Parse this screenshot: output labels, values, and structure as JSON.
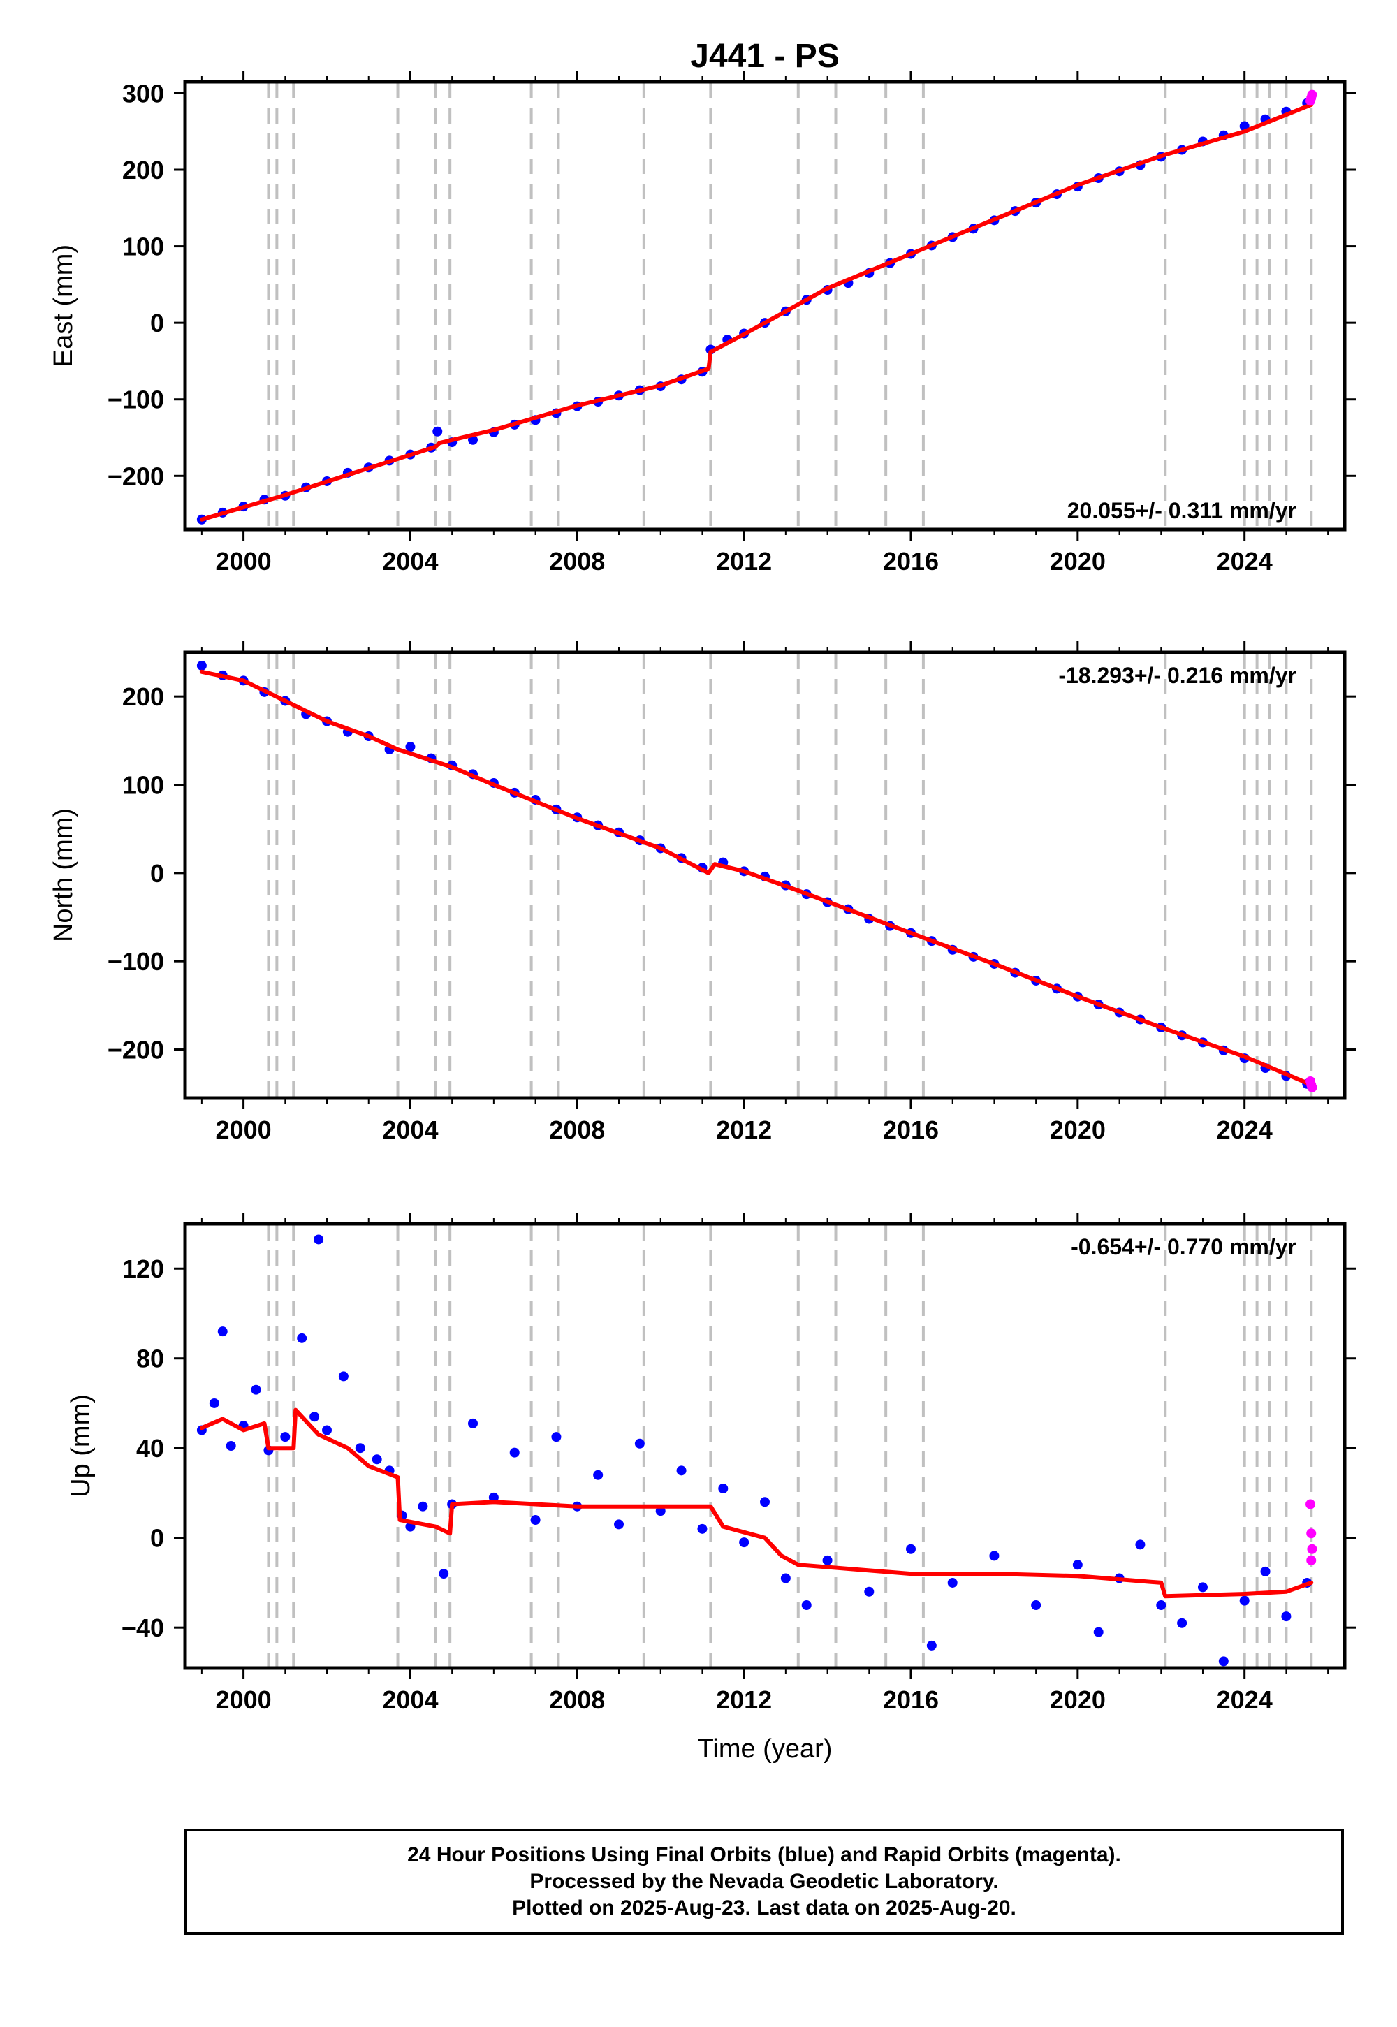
{
  "title": "J441 - PS",
  "xlabel": "Time (year)",
  "colors": {
    "final_orbits": "#0000ff",
    "rapid_orbits": "#ff00ff",
    "model": "#ff0000",
    "event_lines": "#c0c0c0"
  },
  "footer": {
    "line1": "24 Hour Positions Using Final Orbits (blue) and Rapid Orbits (magenta).",
    "line2": "Processed by the Nevada Geodetic Laboratory.",
    "line3": "Plotted on 2025-Aug-23. Last data on 2025-Aug-20."
  },
  "chart_data": [
    {
      "type": "scatter",
      "component": "east",
      "ylabel": "East (mm)",
      "rate_text": "20.055+/- 0.311 mm/yr",
      "rate_placement": "bottom-right",
      "xlim": [
        1998.6,
        2026.4
      ],
      "ylim": [
        -270,
        315
      ],
      "xticks": [
        2000,
        2004,
        2008,
        2012,
        2016,
        2020,
        2024
      ],
      "yticks": [
        -200,
        -100,
        0,
        100,
        200,
        300
      ],
      "event_lines": [
        2000.6,
        2000.8,
        2001.2,
        2003.7,
        2004.6,
        2004.95,
        2006.9,
        2007.55,
        2009.6,
        2011.2,
        2013.3,
        2014.2,
        2015.4,
        2016.3,
        2022.1,
        2024.0,
        2024.3,
        2024.6,
        2025.0,
        2025.6
      ],
      "model_line": [
        [
          1999.0,
          -257
        ],
        [
          2001.0,
          -225
        ],
        [
          2003.0,
          -190
        ],
        [
          2004.6,
          -162
        ],
        [
          2004.7,
          -157
        ],
        [
          2006.0,
          -140
        ],
        [
          2008.0,
          -108
        ],
        [
          2010.0,
          -82
        ],
        [
          2011.15,
          -60
        ],
        [
          2011.2,
          -38
        ],
        [
          2012.0,
          -15
        ],
        [
          2014.0,
          45
        ],
        [
          2016.0,
          90
        ],
        [
          2018.0,
          135
        ],
        [
          2020.0,
          180
        ],
        [
          2022.0,
          218
        ],
        [
          2024.0,
          250
        ],
        [
          2025.6,
          285
        ]
      ],
      "final_points": [
        [
          1999.0,
          -257
        ],
        [
          1999.5,
          -248
        ],
        [
          2000.0,
          -240
        ],
        [
          2000.5,
          -231
        ],
        [
          2001.0,
          -226
        ],
        [
          2001.5,
          -215
        ],
        [
          2002.0,
          -207
        ],
        [
          2002.5,
          -196
        ],
        [
          2003.0,
          -189
        ],
        [
          2003.5,
          -180
        ],
        [
          2004.0,
          -172
        ],
        [
          2004.5,
          -163
        ],
        [
          2004.65,
          -142
        ],
        [
          2005.0,
          -156
        ],
        [
          2005.5,
          -153
        ],
        [
          2006.0,
          -143
        ],
        [
          2006.5,
          -133
        ],
        [
          2007.0,
          -127
        ],
        [
          2007.5,
          -118
        ],
        [
          2008.0,
          -109
        ],
        [
          2008.5,
          -103
        ],
        [
          2009.0,
          -95
        ],
        [
          2009.5,
          -88
        ],
        [
          2010.0,
          -83
        ],
        [
          2010.5,
          -74
        ],
        [
          2011.0,
          -64
        ],
        [
          2011.2,
          -35
        ],
        [
          2011.6,
          -22
        ],
        [
          2012.0,
          -14
        ],
        [
          2012.5,
          0
        ],
        [
          2013.0,
          15
        ],
        [
          2013.5,
          30
        ],
        [
          2014.0,
          43
        ],
        [
          2014.5,
          52
        ],
        [
          2015.0,
          65
        ],
        [
          2015.5,
          78
        ],
        [
          2016.0,
          90
        ],
        [
          2016.5,
          101
        ],
        [
          2017.0,
          112
        ],
        [
          2017.5,
          123
        ],
        [
          2018.0,
          134
        ],
        [
          2018.5,
          146
        ],
        [
          2019.0,
          157
        ],
        [
          2019.5,
          168
        ],
        [
          2020.0,
          178
        ],
        [
          2020.5,
          189
        ],
        [
          2021.0,
          198
        ],
        [
          2021.5,
          206
        ],
        [
          2022.0,
          217
        ],
        [
          2022.5,
          226
        ],
        [
          2023.0,
          237
        ],
        [
          2023.5,
          245
        ],
        [
          2024.0,
          257
        ],
        [
          2024.5,
          266
        ],
        [
          2025.0,
          276
        ],
        [
          2025.5,
          287
        ]
      ],
      "rapid_points": [
        [
          2025.58,
          290
        ],
        [
          2025.6,
          294
        ],
        [
          2025.62,
          298
        ]
      ]
    },
    {
      "type": "scatter",
      "component": "north",
      "ylabel": "North (mm)",
      "rate_text": "-18.293+/- 0.216 mm/yr",
      "rate_placement": "top-right",
      "xlim": [
        1998.6,
        2026.4
      ],
      "ylim": [
        -255,
        250
      ],
      "xticks": [
        2000,
        2004,
        2008,
        2012,
        2016,
        2020,
        2024
      ],
      "yticks": [
        -200,
        -100,
        0,
        100,
        200
      ],
      "event_lines": [
        2000.6,
        2000.8,
        2001.2,
        2003.7,
        2004.6,
        2004.95,
        2006.9,
        2007.55,
        2009.6,
        2011.2,
        2013.3,
        2014.2,
        2015.4,
        2016.3,
        2022.1,
        2024.0,
        2024.3,
        2024.6,
        2025.0,
        2025.6
      ],
      "model_line": [
        [
          1999.0,
          228
        ],
        [
          2000.0,
          218
        ],
        [
          2001.0,
          195
        ],
        [
          2002.0,
          172
        ],
        [
          2003.0,
          155
        ],
        [
          2003.7,
          140
        ],
        [
          2005.0,
          120
        ],
        [
          2006.0,
          100
        ],
        [
          2008.0,
          62
        ],
        [
          2010.0,
          28
        ],
        [
          2011.15,
          0
        ],
        [
          2011.3,
          10
        ],
        [
          2012.0,
          2
        ],
        [
          2013.3,
          -20
        ],
        [
          2016.0,
          -68
        ],
        [
          2018.0,
          -103
        ],
        [
          2020.0,
          -140
        ],
        [
          2022.0,
          -175
        ],
        [
          2024.0,
          -208
        ],
        [
          2025.6,
          -240
        ]
      ],
      "final_points": [
        [
          1999.0,
          235
        ],
        [
          1999.5,
          224
        ],
        [
          2000.0,
          218
        ],
        [
          2000.5,
          205
        ],
        [
          2001.0,
          195
        ],
        [
          2001.5,
          180
        ],
        [
          2002.0,
          172
        ],
        [
          2002.5,
          160
        ],
        [
          2003.0,
          155
        ],
        [
          2003.5,
          140
        ],
        [
          2004.0,
          143
        ],
        [
          2004.5,
          130
        ],
        [
          2005.0,
          122
        ],
        [
          2005.5,
          112
        ],
        [
          2006.0,
          102
        ],
        [
          2006.5,
          91
        ],
        [
          2007.0,
          83
        ],
        [
          2007.5,
          72
        ],
        [
          2008.0,
          63
        ],
        [
          2008.5,
          54
        ],
        [
          2009.0,
          46
        ],
        [
          2009.5,
          37
        ],
        [
          2010.0,
          28
        ],
        [
          2010.5,
          17
        ],
        [
          2011.0,
          6
        ],
        [
          2011.5,
          12
        ],
        [
          2012.0,
          2
        ],
        [
          2012.5,
          -4
        ],
        [
          2013.0,
          -14
        ],
        [
          2013.5,
          -24
        ],
        [
          2014.0,
          -33
        ],
        [
          2014.5,
          -41
        ],
        [
          2015.0,
          -52
        ],
        [
          2015.5,
          -60
        ],
        [
          2016.0,
          -68
        ],
        [
          2016.5,
          -77
        ],
        [
          2017.0,
          -87
        ],
        [
          2017.5,
          -95
        ],
        [
          2018.0,
          -103
        ],
        [
          2018.5,
          -113
        ],
        [
          2019.0,
          -122
        ],
        [
          2019.5,
          -131
        ],
        [
          2020.0,
          -140
        ],
        [
          2020.5,
          -149
        ],
        [
          2021.0,
          -158
        ],
        [
          2021.5,
          -166
        ],
        [
          2022.0,
          -175
        ],
        [
          2022.5,
          -184
        ],
        [
          2023.0,
          -192
        ],
        [
          2023.5,
          -201
        ],
        [
          2024.0,
          -210
        ],
        [
          2024.5,
          -221
        ],
        [
          2025.0,
          -230
        ],
        [
          2025.5,
          -239
        ]
      ],
      "rapid_points": [
        [
          2025.58,
          -236
        ],
        [
          2025.6,
          -240
        ],
        [
          2025.62,
          -243
        ]
      ]
    },
    {
      "type": "scatter",
      "component": "up",
      "ylabel": "Up (mm)",
      "rate_text": "-0.654+/- 0.770 mm/yr",
      "rate_placement": "top-right",
      "xlim": [
        1998.6,
        2026.4
      ],
      "ylim": [
        -58,
        140
      ],
      "xticks": [
        2000,
        2004,
        2008,
        2012,
        2016,
        2020,
        2024
      ],
      "yticks": [
        -40,
        0,
        40,
        80,
        120
      ],
      "event_lines": [
        2000.6,
        2000.8,
        2001.2,
        2003.7,
        2004.6,
        2004.95,
        2006.9,
        2007.55,
        2009.6,
        2011.2,
        2013.3,
        2014.2,
        2015.4,
        2016.3,
        2022.1,
        2024.0,
        2024.3,
        2024.6,
        2025.0,
        2025.6
      ],
      "model_line": [
        [
          1999.0,
          49
        ],
        [
          1999.5,
          53
        ],
        [
          2000.0,
          48
        ],
        [
          2000.5,
          51
        ],
        [
          2000.6,
          40
        ],
        [
          2001.2,
          40
        ],
        [
          2001.25,
          57
        ],
        [
          2001.8,
          46
        ],
        [
          2002.5,
          40
        ],
        [
          2003.0,
          32
        ],
        [
          2003.7,
          27
        ],
        [
          2003.75,
          8
        ],
        [
          2004.6,
          5
        ],
        [
          2004.95,
          2
        ],
        [
          2005.0,
          15
        ],
        [
          2006.0,
          16
        ],
        [
          2008.0,
          14
        ],
        [
          2010.0,
          14
        ],
        [
          2011.2,
          14
        ],
        [
          2011.5,
          5
        ],
        [
          2012.5,
          0
        ],
        [
          2012.9,
          -8
        ],
        [
          2013.3,
          -12
        ],
        [
          2016.0,
          -16
        ],
        [
          2018.0,
          -16
        ],
        [
          2020.0,
          -17
        ],
        [
          2022.0,
          -20
        ],
        [
          2022.1,
          -26
        ],
        [
          2024.0,
          -25
        ],
        [
          2025.0,
          -24
        ],
        [
          2025.6,
          -20
        ]
      ],
      "final_points": [
        [
          1999.0,
          48
        ],
        [
          1999.3,
          60
        ],
        [
          1999.5,
          92
        ],
        [
          1999.7,
          41
        ],
        [
          2000.0,
          50
        ],
        [
          2000.3,
          66
        ],
        [
          2000.6,
          39
        ],
        [
          2001.0,
          45
        ],
        [
          2001.4,
          89
        ],
        [
          2001.7,
          54
        ],
        [
          2002.0,
          48
        ],
        [
          2002.4,
          72
        ],
        [
          2002.8,
          40
        ],
        [
          2003.2,
          35
        ],
        [
          2003.5,
          30
        ],
        [
          2003.8,
          10
        ],
        [
          2004.0,
          5
        ],
        [
          2004.3,
          14
        ],
        [
          2004.8,
          -16
        ],
        [
          2005.0,
          15
        ],
        [
          2005.5,
          51
        ],
        [
          2006.0,
          18
        ],
        [
          2006.5,
          38
        ],
        [
          2007.0,
          8
        ],
        [
          2007.5,
          45
        ],
        [
          2008.0,
          14
        ],
        [
          2008.5,
          28
        ],
        [
          2009.0,
          6
        ],
        [
          2009.5,
          42
        ],
        [
          2010.0,
          12
        ],
        [
          2010.5,
          30
        ],
        [
          2011.0,
          4
        ],
        [
          2011.5,
          22
        ],
        [
          2012.0,
          -2
        ],
        [
          2012.5,
          16
        ],
        [
          2013.0,
          -18
        ],
        [
          2013.5,
          -30
        ],
        [
          2014.0,
          -10
        ],
        [
          2015.0,
          -24
        ],
        [
          2016.0,
          -5
        ],
        [
          2016.5,
          -48
        ],
        [
          2017.0,
          -20
        ],
        [
          2018.0,
          -8
        ],
        [
          2019.0,
          -30
        ],
        [
          2020.0,
          -12
        ],
        [
          2020.5,
          -42
        ],
        [
          2021.0,
          -18
        ],
        [
          2021.5,
          -3
        ],
        [
          2022.0,
          -30
        ],
        [
          2022.5,
          -38
        ],
        [
          2023.0,
          -22
        ],
        [
          2023.5,
          -55
        ],
        [
          2024.0,
          -28
        ],
        [
          2024.5,
          -15
        ],
        [
          2025.0,
          -35
        ],
        [
          2025.5,
          -20
        ],
        [
          2001.8,
          133
        ]
      ],
      "rapid_points": [
        [
          2025.58,
          15
        ],
        [
          2025.6,
          2
        ],
        [
          2025.62,
          -5
        ],
        [
          2025.6,
          -10
        ]
      ]
    }
  ]
}
